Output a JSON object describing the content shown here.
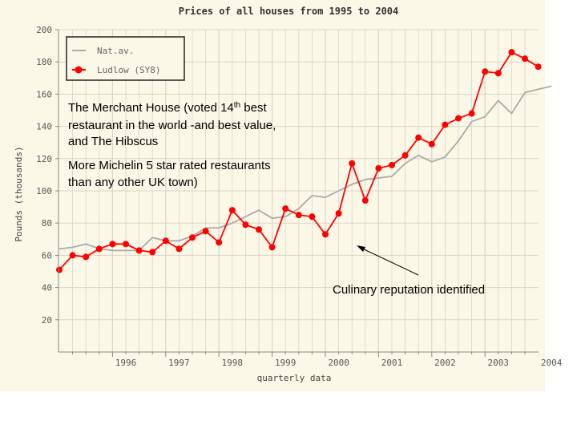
{
  "chart_data": {
    "type": "line",
    "title": "Prices of all houses from 1995 to 2004",
    "xlabel": "quarterly data",
    "ylabel": "Pounds (thousands)",
    "ylim": [
      0,
      200
    ],
    "yticks": [
      20,
      40,
      60,
      80,
      100,
      120,
      140,
      160,
      180,
      200
    ],
    "xticks": [
      "1996",
      "1997",
      "1998",
      "1999",
      "2000",
      "2001",
      "2002",
      "2003",
      "2004"
    ],
    "grid": true,
    "legend_position": "top-left",
    "colors": {
      "background": "#fbf8e8",
      "grid": "#d9d6c6",
      "nat_av": "#aaaaaa",
      "ludlow": "#ff0000"
    },
    "series": [
      {
        "name": "Nat.av.",
        "values": [
          64,
          65,
          67,
          64,
          63,
          63,
          63,
          71,
          69,
          69,
          72,
          77,
          77,
          80,
          84,
          88,
          83,
          84,
          89,
          97,
          96,
          100,
          104,
          107,
          108,
          109,
          117,
          122,
          118,
          121,
          131,
          143,
          146,
          156,
          148,
          161,
          163,
          165
        ]
      },
      {
        "name": "Ludlow (SY8)",
        "values": [
          51,
          60,
          59,
          64,
          67,
          67,
          63,
          62,
          69,
          64,
          71,
          75,
          68,
          88,
          79,
          76,
          65,
          89,
          85,
          84,
          73,
          86,
          117,
          94,
          114,
          116,
          122,
          133,
          129,
          141,
          145,
          148,
          174,
          173,
          186,
          182,
          177
        ]
      }
    ]
  },
  "annotations": {
    "merchant_line1_pre": "The Merchant House (voted 14",
    "merchant_sup": "th",
    "merchant_line1_post": " best",
    "merchant_line2": "restaurant in the world -and best value,",
    "merchant_line3": "and The Hibscus",
    "michelin_line1": "More Michelin 5 star rated restaurants",
    "michelin_line2": "than any other UK town)",
    "culinary": "Culinary reputation identified"
  }
}
